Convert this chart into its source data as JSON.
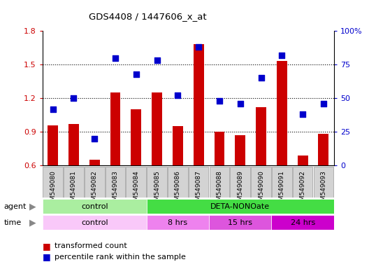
{
  "title": "GDS4408 / 1447606_x_at",
  "samples": [
    "GSM549080",
    "GSM549081",
    "GSM549082",
    "GSM549083",
    "GSM549084",
    "GSM549085",
    "GSM549086",
    "GSM549087",
    "GSM549088",
    "GSM549089",
    "GSM549090",
    "GSM549091",
    "GSM549092",
    "GSM549093"
  ],
  "bar_values": [
    0.96,
    0.97,
    0.65,
    1.25,
    1.1,
    1.25,
    0.95,
    1.68,
    0.9,
    0.87,
    1.12,
    1.53,
    0.69,
    0.88
  ],
  "scatter_values": [
    42,
    50,
    20,
    80,
    68,
    78,
    52,
    88,
    48,
    46,
    65,
    82,
    38,
    46
  ],
  "ylim_left": [
    0.6,
    1.8
  ],
  "ylim_right": [
    0,
    100
  ],
  "yticks_left": [
    0.6,
    0.9,
    1.2,
    1.5,
    1.8
  ],
  "ytick_labels_left": [
    "0.6",
    "0.9",
    "1.2",
    "1.5",
    "1.8"
  ],
  "yticks_right": [
    0,
    25,
    50,
    75,
    100
  ],
  "ytick_labels_right": [
    "0",
    "25",
    "50",
    "75",
    "100%"
  ],
  "bar_color": "#CC0000",
  "scatter_color": "#0000CC",
  "bar_bottom": 0.6,
  "agent_groups": [
    {
      "label": "control",
      "start": 0,
      "end": 5,
      "color": "#AAEEA0"
    },
    {
      "label": "DETA-NONOate",
      "start": 5,
      "end": 14,
      "color": "#44DD44"
    }
  ],
  "time_groups": [
    {
      "label": "control",
      "start": 0,
      "end": 5,
      "color": "#F9C8F9"
    },
    {
      "label": "8 hrs",
      "start": 5,
      "end": 8,
      "color": "#EE82EE"
    },
    {
      "label": "15 hrs",
      "start": 8,
      "end": 11,
      "color": "#DD55DD"
    },
    {
      "label": "24 hrs",
      "start": 11,
      "end": 14,
      "color": "#CC00CC"
    }
  ],
  "legend_bar_label": "transformed count",
  "legend_scatter_label": "percentile rank within the sample",
  "bg_color": "#FFFFFF",
  "plot_bg": "#FFFFFF",
  "tick_label_bg": "#D3D3D3",
  "grid_yticks": [
    0.9,
    1.2,
    1.5
  ]
}
